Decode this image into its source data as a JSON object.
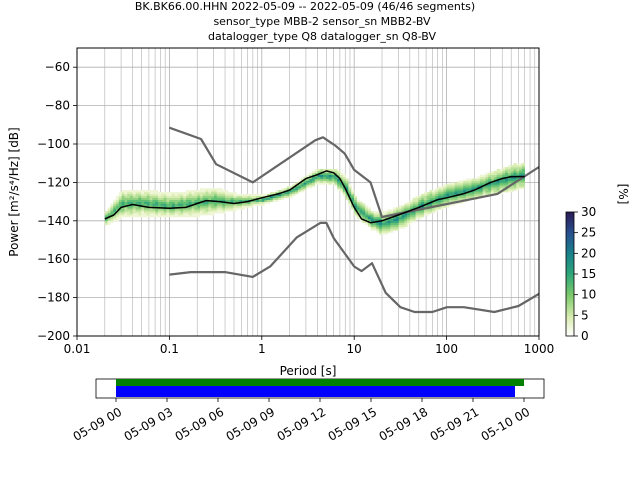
{
  "title_lines": [
    "BK.BK66.00.HHN   2022-05-09 -- 2022-05-09  (46/46 segments)",
    "sensor_type MBB-2 sensor_sn MBB2-BV",
    "datalogger_type Q8 datalogger_sn Q8-BV"
  ],
  "colorbar": {
    "label": "[%]",
    "ticks": [
      "0",
      "5",
      "10",
      "15",
      "20",
      "25",
      "30"
    ],
    "range": [
      0,
      30
    ]
  },
  "timeline": {
    "ticks": [
      "05-09 00",
      "05-09 03",
      "05-09 06",
      "05-09 09",
      "05-09 12",
      "05-09 15",
      "05-09 18",
      "05-09 21",
      "05-10 00"
    ],
    "bars": [
      {
        "name": "data",
        "color": "#008000"
      },
      {
        "name": "gaps",
        "color": "#0000ff"
      }
    ]
  },
  "chart_data": {
    "type": "heatmap",
    "xlabel": "Period [s]",
    "ylabel": "Power [m²/s⁴/Hz] [dB]",
    "x_scale": "log",
    "xlim": [
      0.01,
      1000
    ],
    "ylim": [
      -200,
      -50
    ],
    "x_ticks": [
      "0.01",
      "0.1",
      "1",
      "10",
      "100",
      "1000"
    ],
    "y_ticks": [
      "−200",
      "−180",
      "−160",
      "−140",
      "−120",
      "−100",
      "−80",
      "−60"
    ],
    "grid": true,
    "series": [
      {
        "role": "high-noise-model",
        "color": "#666666",
        "x": [
          0.1,
          0.22,
          0.32,
          0.8,
          3.8,
          4.6,
          6.3,
          7.9,
          10,
          15,
          20,
          354.8,
          1000
        ],
        "y": [
          -91.5,
          -97.4,
          -110.5,
          -120.0,
          -98.0,
          -96.5,
          -101.0,
          -105.0,
          -113.5,
          -120.0,
          -138.0,
          -126.0,
          -112.0
        ]
      },
      {
        "role": "low-noise-model",
        "color": "#666666",
        "x": [
          0.1,
          0.17,
          0.4,
          0.8,
          1.24,
          2.4,
          4.3,
          5.0,
          6.0,
          10.0,
          12.0,
          15.6,
          21.9,
          31.6,
          45,
          70,
          101,
          154,
          328,
          600,
          1000
        ],
        "y": [
          -168.0,
          -166.7,
          -166.7,
          -169.2,
          -163.7,
          -148.6,
          -141.1,
          -141.1,
          -149.0,
          -163.8,
          -166.2,
          -162.1,
          -177.5,
          -185.0,
          -187.5,
          -187.5,
          -185.0,
          -185.0,
          -187.5,
          -184.4,
          -178.0
        ]
      },
      {
        "role": "mode",
        "color": "#000000",
        "x": [
          0.02,
          0.025,
          0.03,
          0.04,
          0.06,
          0.1,
          0.15,
          0.2,
          0.25,
          0.35,
          0.5,
          0.7,
          1,
          1.5,
          2,
          3,
          4,
          5,
          6,
          7,
          8,
          10,
          12,
          15,
          20,
          30,
          50,
          80,
          100,
          150,
          200,
          300,
          400,
          500,
          700
        ],
        "y": [
          -139,
          -137,
          -133,
          -131.5,
          -133,
          -133.5,
          -133,
          -131,
          -129.5,
          -130,
          -131,
          -130,
          -128,
          -126,
          -124,
          -118,
          -116,
          -114,
          -115,
          -118,
          -123,
          -133,
          -139,
          -141,
          -140,
          -137,
          -133,
          -129,
          -128,
          -126,
          -124,
          -120,
          -118,
          -117,
          -117
        ]
      }
    ],
    "density_band": {
      "x": [
        0.02,
        0.03,
        0.05,
        0.1,
        0.2,
        0.3,
        0.5,
        1,
        2,
        4,
        6,
        8,
        10,
        15,
        20,
        30,
        50,
        100,
        200,
        300,
        500,
        700
      ],
      "upper": [
        -135,
        -124,
        -124,
        -126,
        -124,
        -123,
        -126,
        -127,
        -122,
        -113,
        -113,
        -118,
        -128,
        -135,
        -136,
        -133,
        -127,
        -121,
        -118,
        -115,
        -111,
        -110
      ],
      "lower": [
        -142,
        -138,
        -137,
        -138,
        -137,
        -136,
        -134,
        -131,
        -127,
        -120,
        -121,
        -128,
        -137,
        -144,
        -147,
        -144,
        -138,
        -132,
        -128,
        -126,
        -124,
        -122
      ]
    }
  }
}
